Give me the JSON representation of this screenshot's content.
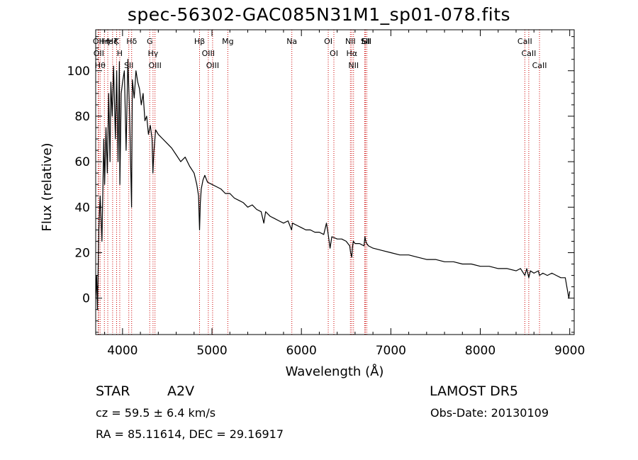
{
  "figure": {
    "title": "spec-56302-GAC085N31M1_sp01-078.fits",
    "object_class": "STAR",
    "subclass": "A2V",
    "survey": "LAMOST DR5",
    "redshift_text": "cz = 59.5 ± 6.4 km/s",
    "obs_date_text": "Obs-Date: 20130109",
    "coords_text": "RA =  85.11614, DEC =  29.16917"
  },
  "chart_data": {
    "type": "line",
    "title": "spec-56302-GAC085N31M1_sp01-078.fits",
    "xlabel": "Wavelength (Å)",
    "ylabel": "Flux (relative)",
    "xlim": [
      3700,
      9050
    ],
    "ylim": [
      -16,
      118
    ],
    "xticks": [
      4000,
      5000,
      6000,
      7000,
      8000,
      9000
    ],
    "yticks": [
      0,
      20,
      40,
      60,
      80,
      100
    ],
    "line_color": "#000000",
    "marker_color": "#cc0000",
    "series": [
      {
        "x": [
          3700,
          3710,
          3720,
          3735,
          3750,
          3770,
          3790,
          3800,
          3815,
          3830,
          3845,
          3860,
          3870,
          3885,
          3900,
          3920,
          3935,
          3950,
          3965,
          3970,
          3985,
          4000,
          4020,
          4040,
          4060,
          4080,
          4101,
          4110,
          4130,
          4150,
          4170,
          4190,
          4210,
          4230,
          4250,
          4270,
          4290,
          4310,
          4330,
          4340,
          4350,
          4370,
          4400,
          4450,
          4500,
          4550,
          4600,
          4650,
          4700,
          4750,
          4800,
          4830,
          4850,
          4861,
          4870,
          4880,
          4900,
          4920,
          4950,
          5000,
          5050,
          5100,
          5150,
          5200,
          5250,
          5300,
          5350,
          5400,
          5450,
          5500,
          5550,
          5580,
          5600,
          5650,
          5700,
          5750,
          5800,
          5850,
          5890,
          5900,
          5950,
          6000,
          6050,
          6100,
          6150,
          6200,
          6250,
          6280,
          6300,
          6320,
          6340,
          6400,
          6450,
          6500,
          6540,
          6550,
          6563,
          6570,
          6580,
          6600,
          6650,
          6700,
          6710,
          6720,
          6730,
          6750,
          6800,
          6900,
          7000,
          7100,
          7200,
          7300,
          7400,
          7500,
          7600,
          7700,
          7800,
          7900,
          8000,
          8100,
          8200,
          8300,
          8400,
          8450,
          8498,
          8520,
          8542,
          8560,
          8600,
          8650,
          8662,
          8700,
          8750,
          8800,
          8850,
          8900,
          8950,
          8990,
          9000
        ],
        "y": [
          0,
          10,
          -5,
          30,
          45,
          25,
          70,
          50,
          75,
          55,
          90,
          60,
          95,
          80,
          102,
          70,
          100,
          60,
          104,
          50,
          90,
          95,
          100,
          65,
          105,
          80,
          40,
          96,
          88,
          100,
          95,
          92,
          85,
          90,
          78,
          80,
          72,
          76,
          70,
          55,
          64,
          74,
          72,
          70,
          68,
          66,
          63,
          60,
          62,
          58,
          55,
          50,
          45,
          30,
          42,
          48,
          52,
          54,
          51,
          50,
          49,
          48,
          46,
          46,
          44,
          43,
          42,
          40,
          41,
          39,
          38,
          33,
          38,
          36,
          35,
          34,
          33,
          34,
          30,
          33,
          32,
          31,
          30,
          30,
          29,
          29,
          28,
          33,
          28,
          22,
          27,
          26,
          26,
          25,
          23,
          20,
          18,
          22,
          25,
          24,
          24,
          23,
          27,
          25,
          24,
          23,
          22,
          21,
          20,
          19,
          19,
          18,
          17,
          17,
          16,
          16,
          15,
          15,
          14,
          14,
          13,
          13,
          12,
          13,
          10,
          13,
          9,
          12,
          11,
          12,
          10,
          11,
          10,
          11,
          10,
          9,
          9,
          0,
          3
        ]
      }
    ],
    "lines": [
      {
        "wl": 3727,
        "label": "OII"
      },
      {
        "wl": 3734,
        "label": "OII"
      },
      {
        "wl": 3750,
        "label": "Hθ"
      },
      {
        "wl": 3797,
        "label": "Hη"
      },
      {
        "wl": 3835,
        "label": "Hε"
      },
      {
        "wl": 3889,
        "label": "Hζ"
      },
      {
        "wl": 3934,
        "label": "K"
      },
      {
        "wl": 3969,
        "label": "H"
      },
      {
        "wl": 4070,
        "label": "SII"
      },
      {
        "wl": 4102,
        "label": "Hδ"
      },
      {
        "wl": 4304,
        "label": "G"
      },
      {
        "wl": 4341,
        "label": "Hγ"
      },
      {
        "wl": 4363,
        "label": "OIII"
      },
      {
        "wl": 4861,
        "label": "Hβ"
      },
      {
        "wl": 4959,
        "label": "OIII"
      },
      {
        "wl": 5007,
        "label": "OIII"
      },
      {
        "wl": 5177,
        "label": "Mg"
      },
      {
        "wl": 5893,
        "label": "Na"
      },
      {
        "wl": 6300,
        "label": "OI"
      },
      {
        "wl": 6363,
        "label": "OI"
      },
      {
        "wl": 6548,
        "label": "NII"
      },
      {
        "wl": 6563,
        "label": "Hα"
      },
      {
        "wl": 6583,
        "label": "NII"
      },
      {
        "wl": 6708,
        "label": "Li"
      },
      {
        "wl": 6716,
        "label": "SII"
      },
      {
        "wl": 6731,
        "label": "SII"
      },
      {
        "wl": 8498,
        "label": "CaII"
      },
      {
        "wl": 8542,
        "label": "CaII"
      },
      {
        "wl": 8662,
        "label": "CaII"
      }
    ]
  }
}
